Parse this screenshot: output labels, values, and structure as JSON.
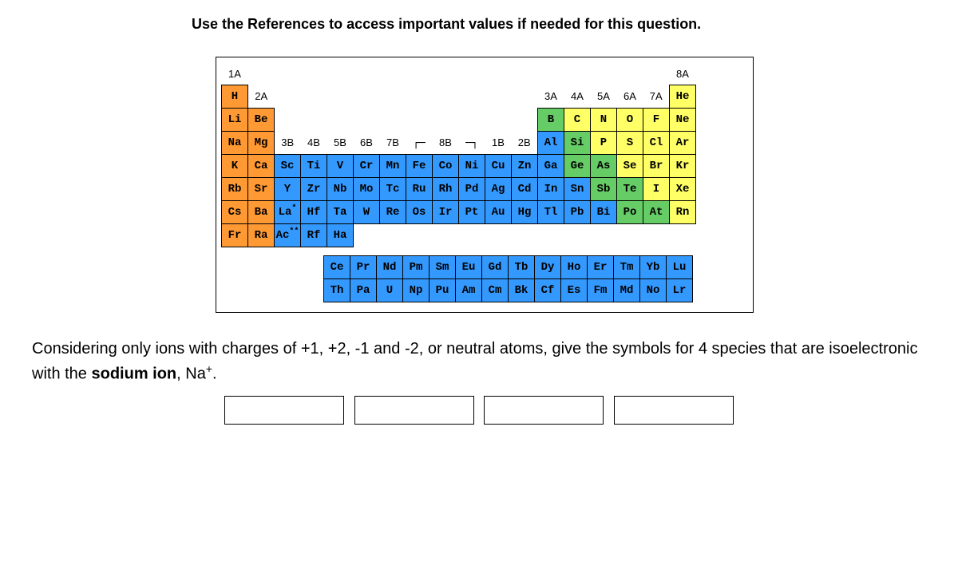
{
  "instruction": "Use the References to access important values if needed for this question.",
  "colors": {
    "orange": "#ff9933",
    "green": "#66cc66",
    "yellow": "#ffff66",
    "blue": "#3399ff",
    "white": "#ffffff"
  },
  "groupLabels": {
    "1A": "1A",
    "2A": "2A",
    "3A": "3A",
    "4A": "4A",
    "5A": "5A",
    "6A": "6A",
    "7A": "7A",
    "8A": "8A",
    "3B": "3B",
    "4B": "4B",
    "5B": "5B",
    "6B": "6B",
    "7B": "7B",
    "8B": "8B",
    "1B": "1B",
    "2B": "2B"
  },
  "table": [
    [
      null,
      null,
      null,
      null,
      null,
      null,
      null,
      null,
      null,
      null,
      null,
      null,
      null,
      null,
      null,
      null,
      null,
      null
    ],
    [
      {
        "s": "H",
        "c": "orange"
      },
      null,
      null,
      null,
      null,
      null,
      null,
      null,
      null,
      null,
      null,
      null,
      null,
      null,
      null,
      null,
      null,
      {
        "s": "He",
        "c": "yellow"
      }
    ],
    [
      {
        "s": "Li",
        "c": "orange"
      },
      {
        "s": "Be",
        "c": "orange"
      },
      null,
      null,
      null,
      null,
      null,
      null,
      null,
      null,
      null,
      null,
      {
        "s": "B",
        "c": "green"
      },
      {
        "s": "C",
        "c": "yellow"
      },
      {
        "s": "N",
        "c": "yellow"
      },
      {
        "s": "O",
        "c": "yellow"
      },
      {
        "s": "F",
        "c": "yellow"
      },
      {
        "s": "Ne",
        "c": "yellow"
      }
    ],
    [
      {
        "s": "Na",
        "c": "orange"
      },
      {
        "s": "Mg",
        "c": "orange"
      },
      null,
      null,
      null,
      null,
      null,
      null,
      null,
      null,
      null,
      null,
      {
        "s": "Al",
        "c": "blue"
      },
      {
        "s": "Si",
        "c": "green"
      },
      {
        "s": "P",
        "c": "yellow"
      },
      {
        "s": "S",
        "c": "yellow"
      },
      {
        "s": "Cl",
        "c": "yellow"
      },
      {
        "s": "Ar",
        "c": "yellow"
      }
    ],
    [
      {
        "s": "K",
        "c": "orange"
      },
      {
        "s": "Ca",
        "c": "orange"
      },
      {
        "s": "Sc",
        "c": "blue"
      },
      {
        "s": "Ti",
        "c": "blue"
      },
      {
        "s": "V",
        "c": "blue"
      },
      {
        "s": "Cr",
        "c": "blue"
      },
      {
        "s": "Mn",
        "c": "blue"
      },
      {
        "s": "Fe",
        "c": "blue"
      },
      {
        "s": "Co",
        "c": "blue"
      },
      {
        "s": "Ni",
        "c": "blue"
      },
      {
        "s": "Cu",
        "c": "blue"
      },
      {
        "s": "Zn",
        "c": "blue"
      },
      {
        "s": "Ga",
        "c": "blue"
      },
      {
        "s": "Ge",
        "c": "green"
      },
      {
        "s": "As",
        "c": "green"
      },
      {
        "s": "Se",
        "c": "yellow"
      },
      {
        "s": "Br",
        "c": "yellow"
      },
      {
        "s": "Kr",
        "c": "yellow"
      }
    ],
    [
      {
        "s": "Rb",
        "c": "orange"
      },
      {
        "s": "Sr",
        "c": "orange"
      },
      {
        "s": "Y",
        "c": "blue"
      },
      {
        "s": "Zr",
        "c": "blue"
      },
      {
        "s": "Nb",
        "c": "blue"
      },
      {
        "s": "Mo",
        "c": "blue"
      },
      {
        "s": "Tc",
        "c": "blue"
      },
      {
        "s": "Ru",
        "c": "blue"
      },
      {
        "s": "Rh",
        "c": "blue"
      },
      {
        "s": "Pd",
        "c": "blue"
      },
      {
        "s": "Ag",
        "c": "blue"
      },
      {
        "s": "Cd",
        "c": "blue"
      },
      {
        "s": "In",
        "c": "blue"
      },
      {
        "s": "Sn",
        "c": "blue"
      },
      {
        "s": "Sb",
        "c": "green"
      },
      {
        "s": "Te",
        "c": "green"
      },
      {
        "s": "I",
        "c": "yellow"
      },
      {
        "s": "Xe",
        "c": "yellow"
      }
    ],
    [
      {
        "s": "Cs",
        "c": "orange"
      },
      {
        "s": "Ba",
        "c": "orange"
      },
      {
        "s": "La",
        "c": "blue",
        "star": "*"
      },
      {
        "s": "Hf",
        "c": "blue"
      },
      {
        "s": "Ta",
        "c": "blue"
      },
      {
        "s": "W",
        "c": "blue"
      },
      {
        "s": "Re",
        "c": "blue"
      },
      {
        "s": "Os",
        "c": "blue"
      },
      {
        "s": "Ir",
        "c": "blue"
      },
      {
        "s": "Pt",
        "c": "blue"
      },
      {
        "s": "Au",
        "c": "blue"
      },
      {
        "s": "Hg",
        "c": "blue"
      },
      {
        "s": "Tl",
        "c": "blue"
      },
      {
        "s": "Pb",
        "c": "blue"
      },
      {
        "s": "Bi",
        "c": "blue"
      },
      {
        "s": "Po",
        "c": "green"
      },
      {
        "s": "At",
        "c": "green"
      },
      {
        "s": "Rn",
        "c": "yellow"
      }
    ],
    [
      {
        "s": "Fr",
        "c": "orange"
      },
      {
        "s": "Ra",
        "c": "orange"
      },
      {
        "s": "Ac",
        "c": "blue",
        "star": "**"
      },
      {
        "s": "Rf",
        "c": "blue"
      },
      {
        "s": "Ha",
        "c": "blue"
      },
      null,
      null,
      null,
      null,
      null,
      null,
      null,
      null,
      null,
      null,
      null,
      null,
      null
    ]
  ],
  "fblock": [
    [
      {
        "s": "Ce",
        "c": "blue"
      },
      {
        "s": "Pr",
        "c": "blue"
      },
      {
        "s": "Nd",
        "c": "blue"
      },
      {
        "s": "Pm",
        "c": "blue"
      },
      {
        "s": "Sm",
        "c": "blue"
      },
      {
        "s": "Eu",
        "c": "blue"
      },
      {
        "s": "Gd",
        "c": "blue"
      },
      {
        "s": "Tb",
        "c": "blue"
      },
      {
        "s": "Dy",
        "c": "blue"
      },
      {
        "s": "Ho",
        "c": "blue"
      },
      {
        "s": "Er",
        "c": "blue"
      },
      {
        "s": "Tm",
        "c": "blue"
      },
      {
        "s": "Yb",
        "c": "blue"
      },
      {
        "s": "Lu",
        "c": "blue"
      }
    ],
    [
      {
        "s": "Th",
        "c": "blue"
      },
      {
        "s": "Pa",
        "c": "blue"
      },
      {
        "s": "U",
        "c": "blue"
      },
      {
        "s": "Np",
        "c": "blue"
      },
      {
        "s": "Pu",
        "c": "blue"
      },
      {
        "s": "Am",
        "c": "blue"
      },
      {
        "s": "Cm",
        "c": "blue"
      },
      {
        "s": "Bk",
        "c": "blue"
      },
      {
        "s": "Cf",
        "c": "blue"
      },
      {
        "s": "Es",
        "c": "blue"
      },
      {
        "s": "Fm",
        "c": "blue"
      },
      {
        "s": "Md",
        "c": "blue"
      },
      {
        "s": "No",
        "c": "blue"
      },
      {
        "s": "Lr",
        "c": "blue"
      }
    ]
  ],
  "question": {
    "prefix": "Considering only ions with charges of +1, +2, -1 and -2, or neutral atoms, give the symbols for 4 species that are isoelectronic with the ",
    "bold": "sodium ion",
    "ion": ", Na",
    "sup": "+",
    "suffix": "."
  }
}
